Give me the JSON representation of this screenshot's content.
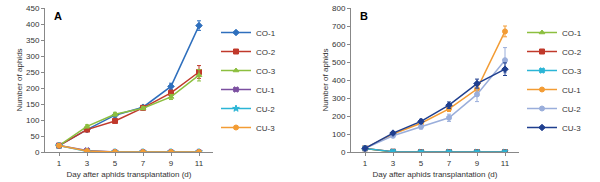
{
  "chart_data": [
    {
      "type": "line",
      "title": "A",
      "x": [
        1,
        3,
        5,
        7,
        9,
        11
      ],
      "xlabel": "Day after aphids transplantation (d)",
      "ylabel": "Number of aphids",
      "xlim": [
        0,
        12
      ],
      "xticks": [
        1,
        3,
        5,
        7,
        9,
        11
      ],
      "ylim": [
        0,
        450
      ],
      "yticks": [
        0,
        50,
        100,
        150,
        200,
        250,
        300,
        350,
        400,
        450
      ],
      "grid": false,
      "legend": "right",
      "series": [
        {
          "name": "CO-1",
          "color": "#2e6fbd",
          "marker": "diamond",
          "values": [
            20,
            70,
            115,
            140,
            205,
            395
          ],
          "errors": [
            3,
            5,
            6,
            5,
            10,
            15
          ]
        },
        {
          "name": "CO-2",
          "color": "#c0392b",
          "marker": "square",
          "values": [
            20,
            70,
            97,
            138,
            185,
            250
          ],
          "errors": [
            3,
            5,
            5,
            5,
            8,
            20
          ]
        },
        {
          "name": "CO-3",
          "color": "#8cbf3f",
          "marker": "triangle-up",
          "values": [
            20,
            80,
            118,
            137,
            172,
            240
          ],
          "errors": [
            3,
            5,
            6,
            5,
            8,
            18
          ]
        },
        {
          "name": "CU-1",
          "color": "#7b4fa0",
          "marker": "x",
          "values": [
            20,
            5,
            0,
            0,
            0,
            0
          ],
          "errors": [
            3,
            1,
            0,
            0,
            0,
            0
          ]
        },
        {
          "name": "CU-2",
          "color": "#2bb5d6",
          "marker": "star",
          "values": [
            20,
            2,
            0,
            0,
            0,
            0
          ],
          "errors": [
            3,
            1,
            0,
            0,
            0,
            0
          ]
        },
        {
          "name": "CU-3",
          "color": "#f39c34",
          "marker": "circle",
          "values": [
            20,
            3,
            0,
            0,
            0,
            0
          ],
          "errors": [
            3,
            1,
            0,
            0,
            0,
            0
          ]
        }
      ]
    },
    {
      "type": "line",
      "title": "B",
      "x": [
        1,
        3,
        5,
        7,
        9,
        11
      ],
      "xlabel": "Day after aphids transplantation (d)",
      "ylabel": "Number of aphids",
      "xlim": [
        0,
        12
      ],
      "xticks": [
        1,
        3,
        5,
        7,
        9,
        11
      ],
      "ylim": [
        0,
        800
      ],
      "yticks": [
        0,
        100,
        200,
        300,
        400,
        500,
        600,
        700,
        800
      ],
      "grid": false,
      "legend": "right",
      "series": [
        {
          "name": "CO-1",
          "color": "#8cbf3f",
          "marker": "triangle-up",
          "values": [
            20,
            0,
            0,
            0,
            0,
            0
          ],
          "errors": [
            3,
            0,
            0,
            0,
            0,
            0
          ]
        },
        {
          "name": "CO-2",
          "color": "#c0392b",
          "marker": "square",
          "values": [
            20,
            2,
            0,
            0,
            0,
            0
          ],
          "errors": [
            3,
            1,
            0,
            0,
            0,
            0
          ]
        },
        {
          "name": "CO-3",
          "color": "#2bb5d6",
          "marker": "x",
          "values": [
            20,
            2,
            0,
            0,
            0,
            0
          ],
          "errors": [
            3,
            1,
            0,
            0,
            0,
            0
          ]
        },
        {
          "name": "CU-1",
          "color": "#f39c34",
          "marker": "circle",
          "values": [
            20,
            100,
            160,
            240,
            350,
            670
          ],
          "errors": [
            3,
            8,
            10,
            15,
            20,
            30
          ]
        },
        {
          "name": "CU-2",
          "color": "#9aaedb",
          "marker": "circle",
          "values": [
            20,
            90,
            140,
            190,
            320,
            510
          ],
          "errors": [
            3,
            10,
            12,
            20,
            40,
            70
          ]
        },
        {
          "name": "CU-3",
          "color": "#1f3f8f",
          "marker": "diamond",
          "values": [
            20,
            105,
            170,
            260,
            380,
            460
          ],
          "errors": [
            3,
            8,
            12,
            18,
            25,
            35
          ]
        }
      ]
    }
  ]
}
